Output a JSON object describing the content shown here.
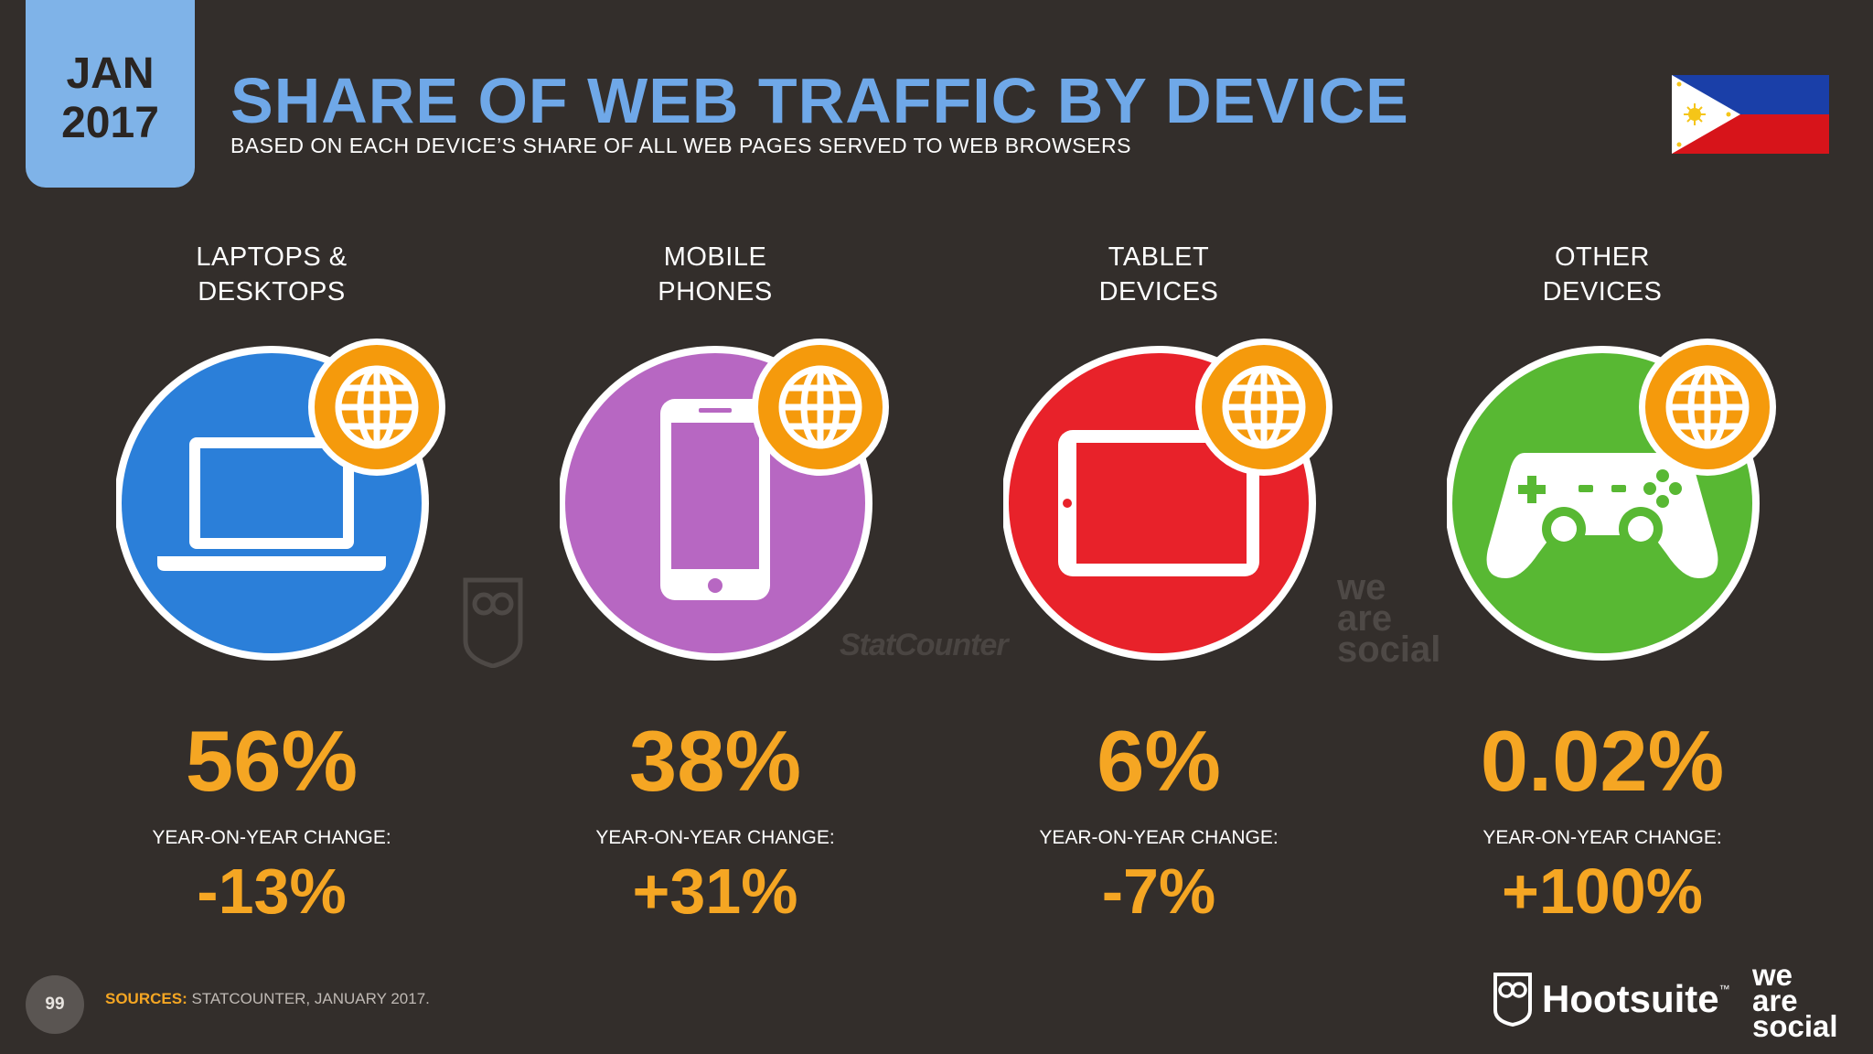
{
  "header": {
    "date_month": "JAN",
    "date_year": "2017",
    "title": "SHARE OF WEB TRAFFIC BY DEVICE",
    "subtitle": "BASED ON EACH DEVICE’S SHARE OF ALL WEB PAGES SERVED TO WEB BROWSERS"
  },
  "flag": {
    "icon": "philippines-flag-icon"
  },
  "devices": [
    {
      "label_line1": "LAPTOPS &",
      "label_line2": "DESKTOPS",
      "share": "56%",
      "yoy_label": "YEAR-ON-YEAR CHANGE:",
      "yoy": "-13%",
      "color": "#2b7fd9",
      "icon": "laptop-icon"
    },
    {
      "label_line1": "MOBILE",
      "label_line2": "PHONES",
      "share": "38%",
      "yoy_label": "YEAR-ON-YEAR CHANGE:",
      "yoy": "+31%",
      "color": "#b767c2",
      "icon": "mobile-phone-icon"
    },
    {
      "label_line1": "TABLET",
      "label_line2": "DEVICES",
      "share": "6%",
      "yoy_label": "YEAR-ON-YEAR CHANGE:",
      "yoy": "-7%",
      "color": "#e8222a",
      "icon": "tablet-icon"
    },
    {
      "label_line1": "OTHER",
      "label_line2": "DEVICES",
      "share": "0.02%",
      "yoy_label": "YEAR-ON-YEAR CHANGE:",
      "yoy": "+100%",
      "color": "#58b833",
      "icon": "game-controller-icon"
    }
  ],
  "watermarks": {
    "statcounter": "StatCounter",
    "was_line1": "we",
    "was_line2": "are",
    "was_line3": "social"
  },
  "footer": {
    "page_number": "99",
    "sources_key": "SOURCES:",
    "sources_text": " STATCOUNTER, JANUARY 2017.",
    "hootsuite": "Hootsuite",
    "tm": "™",
    "was_line1": "we",
    "was_line2": "are",
    "was_line3": "social"
  },
  "colors": {
    "accent": "#f5a623",
    "title": "#6fa8e8",
    "background": "#332e2b",
    "globe": "#f59a0c"
  }
}
